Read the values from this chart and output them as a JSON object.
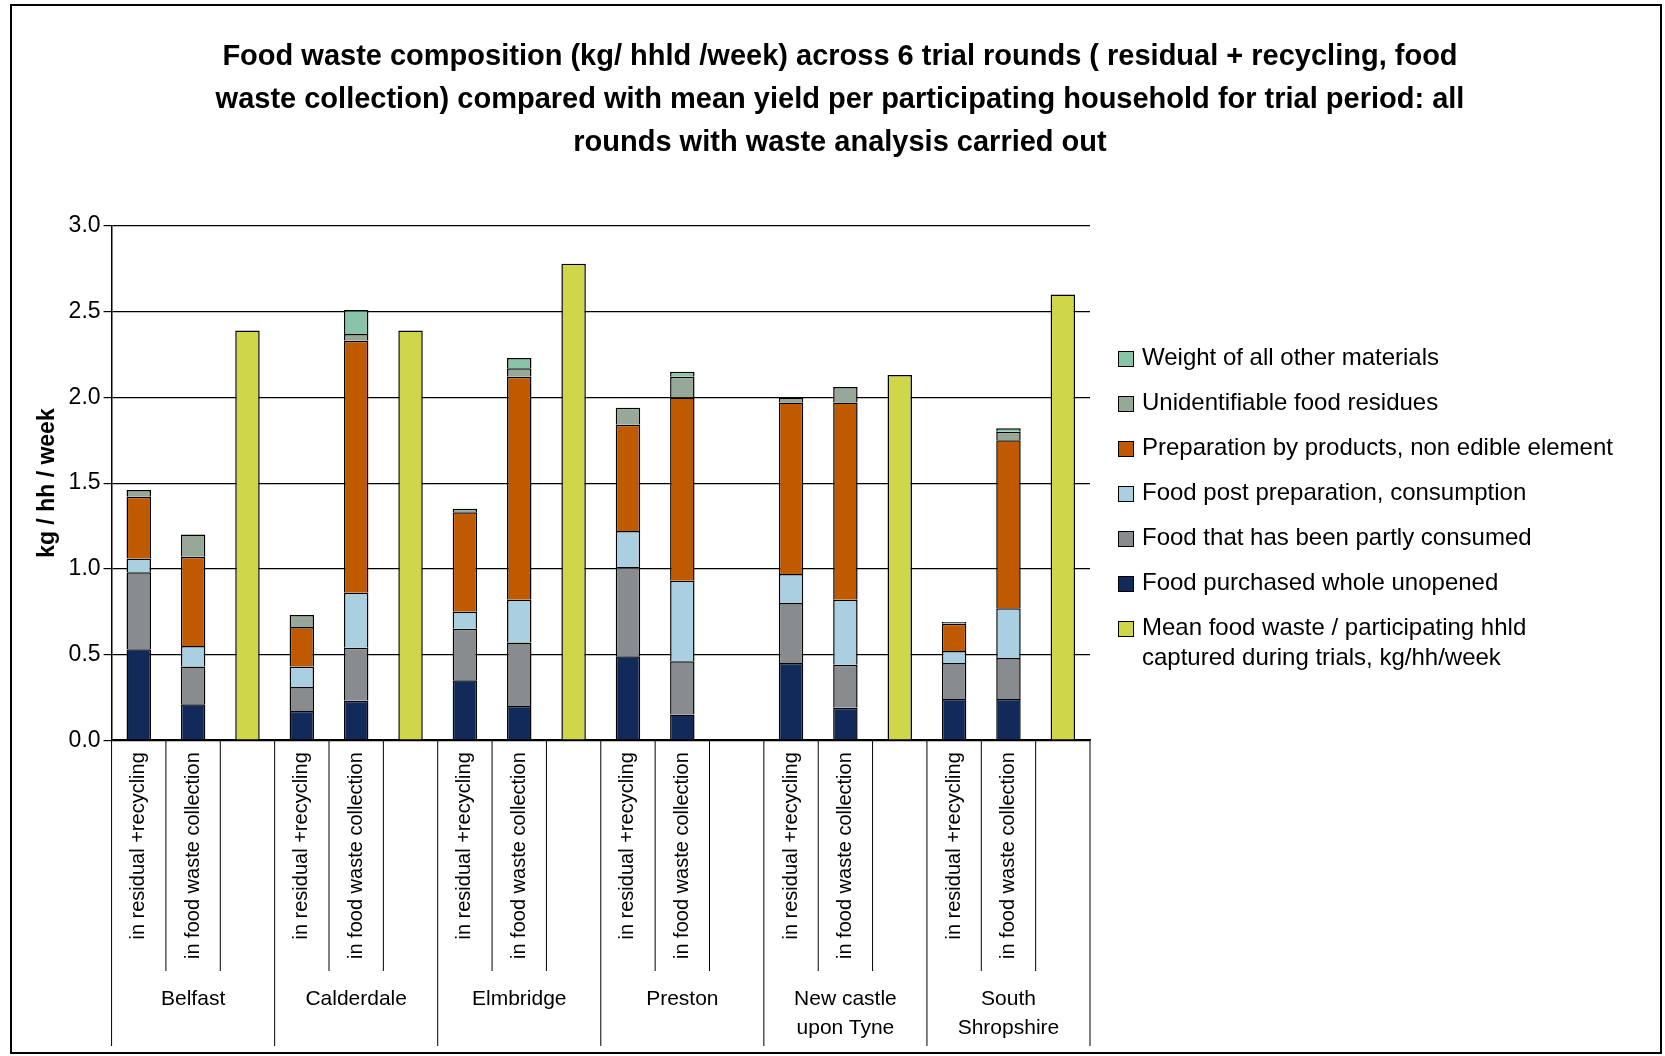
{
  "chart_data": {
    "type": "bar",
    "stacked": true,
    "title": "Food waste composition (kg/ hhld /week) across 6 trial rounds ( residual + recycling, food waste collection) compared with  mean yield  per  participating household  for trial period:  all rounds with waste analysis carried out",
    "ylabel": "kg / hh / week",
    "categories": [
      "in residual +recycling",
      "in food waste collection",
      null,
      "in residual +recycling",
      "in food waste collection",
      null,
      "in residual +recycling",
      "in food waste collection",
      null,
      "in residual +recycling",
      "in food waste collection",
      null,
      "in residual +recycling",
      "in food waste collection",
      null,
      "in residual +recycling",
      "in food waste collection",
      null
    ],
    "annotations": [
      "Belfast",
      "Calderdale",
      "Elmbridge",
      "Preston",
      "New castle upon Tyne",
      "South Shropshire"
    ],
    "series": [
      {
        "name": "Mean food waste / participating hhld captured during trials, kg/hh/week",
        "color": "#d0d64a",
        "values": [
          null,
          null,
          2.39,
          null,
          null,
          2.39,
          null,
          null,
          2.78,
          null,
          null,
          null,
          null,
          null,
          2.13,
          null,
          null,
          2.6
        ]
      },
      {
        "name": "Food purchased whole unopened",
        "color": "#112a5a",
        "values": [
          0.53,
          0.21,
          null,
          0.17,
          0.23,
          null,
          0.35,
          0.2,
          null,
          0.49,
          0.15,
          null,
          0.45,
          0.19,
          null,
          0.24,
          0.24,
          null
        ]
      },
      {
        "name": "Food that has been partly consumed",
        "color": "#888c8f",
        "values": [
          0.45,
          0.22,
          null,
          0.14,
          0.31,
          null,
          0.3,
          0.37,
          null,
          0.52,
          0.31,
          null,
          0.35,
          0.25,
          null,
          0.21,
          0.24,
          null
        ]
      },
      {
        "name": "Food post preparation, consumption",
        "color": "#a9cfe0",
        "values": [
          0.08,
          0.12,
          null,
          0.12,
          0.32,
          null,
          0.1,
          0.25,
          null,
          0.21,
          0.47,
          null,
          0.17,
          0.38,
          null,
          0.07,
          0.29,
          null
        ]
      },
      {
        "name": "Preparation by products, non edible element",
        "color": "#c05a00",
        "values": [
          0.36,
          0.52,
          null,
          0.23,
          1.47,
          null,
          0.58,
          1.3,
          null,
          0.62,
          1.07,
          null,
          1.0,
          1.15,
          null,
          0.16,
          0.98,
          null
        ]
      },
      {
        "name": "Unidentifiable food residues",
        "color": "#98a898",
        "values": [
          0.04,
          0.13,
          null,
          0.07,
          0.04,
          null,
          0.02,
          0.05,
          null,
          0.1,
          0.12,
          null,
          0.03,
          0.09,
          null,
          0.01,
          0.05,
          null
        ]
      },
      {
        "name": "Weight of all other materials",
        "color": "#88c4a8",
        "values": [
          null,
          null,
          null,
          null,
          0.14,
          null,
          null,
          0.06,
          null,
          null,
          0.03,
          null,
          null,
          null,
          null,
          null,
          0.02,
          null
        ]
      }
    ],
    "ylim": [
      0,
      3
    ],
    "yticks": [
      {
        "value": 0,
        "label": "0.0"
      },
      {
        "value": 0.5,
        "label": "0.5"
      },
      {
        "value": 1,
        "label": "1.0"
      },
      {
        "value": 1.5,
        "label": "1.5"
      },
      {
        "value": 2,
        "label": "2.0"
      },
      {
        "value": 2.5,
        "label": "2.5"
      },
      {
        "value": 3,
        "label": "3.0"
      }
    ],
    "grid": "y",
    "legend": "right"
  }
}
